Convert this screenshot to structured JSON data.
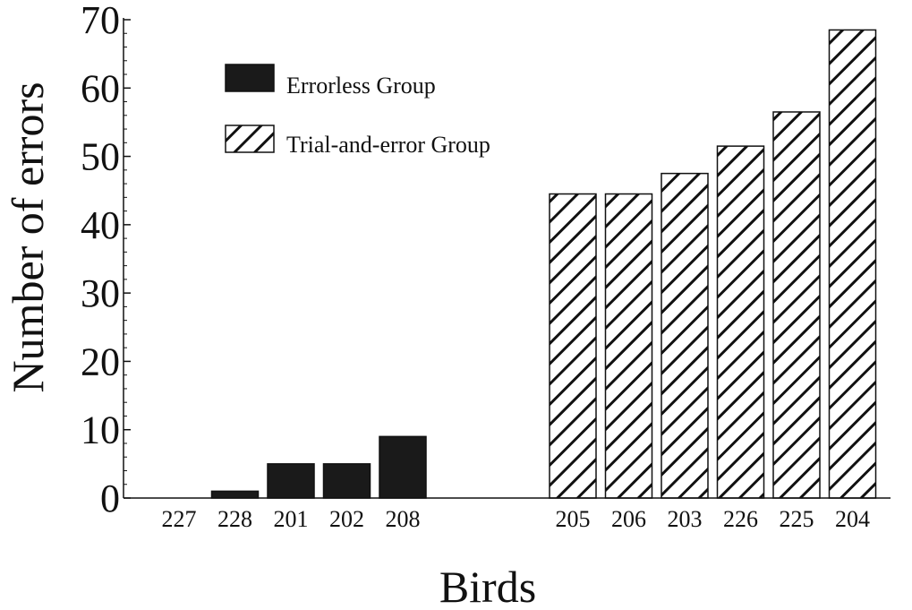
{
  "chart_data": {
    "type": "bar",
    "title": "",
    "xlabel": "Birds",
    "ylabel": "Number of errors",
    "ylim": [
      0,
      70
    ],
    "yticks": [
      0,
      10,
      20,
      30,
      40,
      50,
      60,
      70
    ],
    "grid": false,
    "legend_position": "top-left",
    "series": [
      {
        "name": "Errorless Group",
        "fill": "solid",
        "color": "#1a1a1a",
        "categories": [
          "227",
          "228",
          "201",
          "202",
          "208"
        ],
        "values": [
          0,
          1,
          5,
          5,
          9
        ]
      },
      {
        "name": "Trial-and-error Group",
        "fill": "hatched",
        "color": "#1a1a1a",
        "categories": [
          "205",
          "206",
          "203",
          "226",
          "225",
          "204"
        ],
        "values": [
          44.5,
          44.5,
          47.5,
          51.5,
          56.5,
          68.5
        ]
      }
    ]
  }
}
